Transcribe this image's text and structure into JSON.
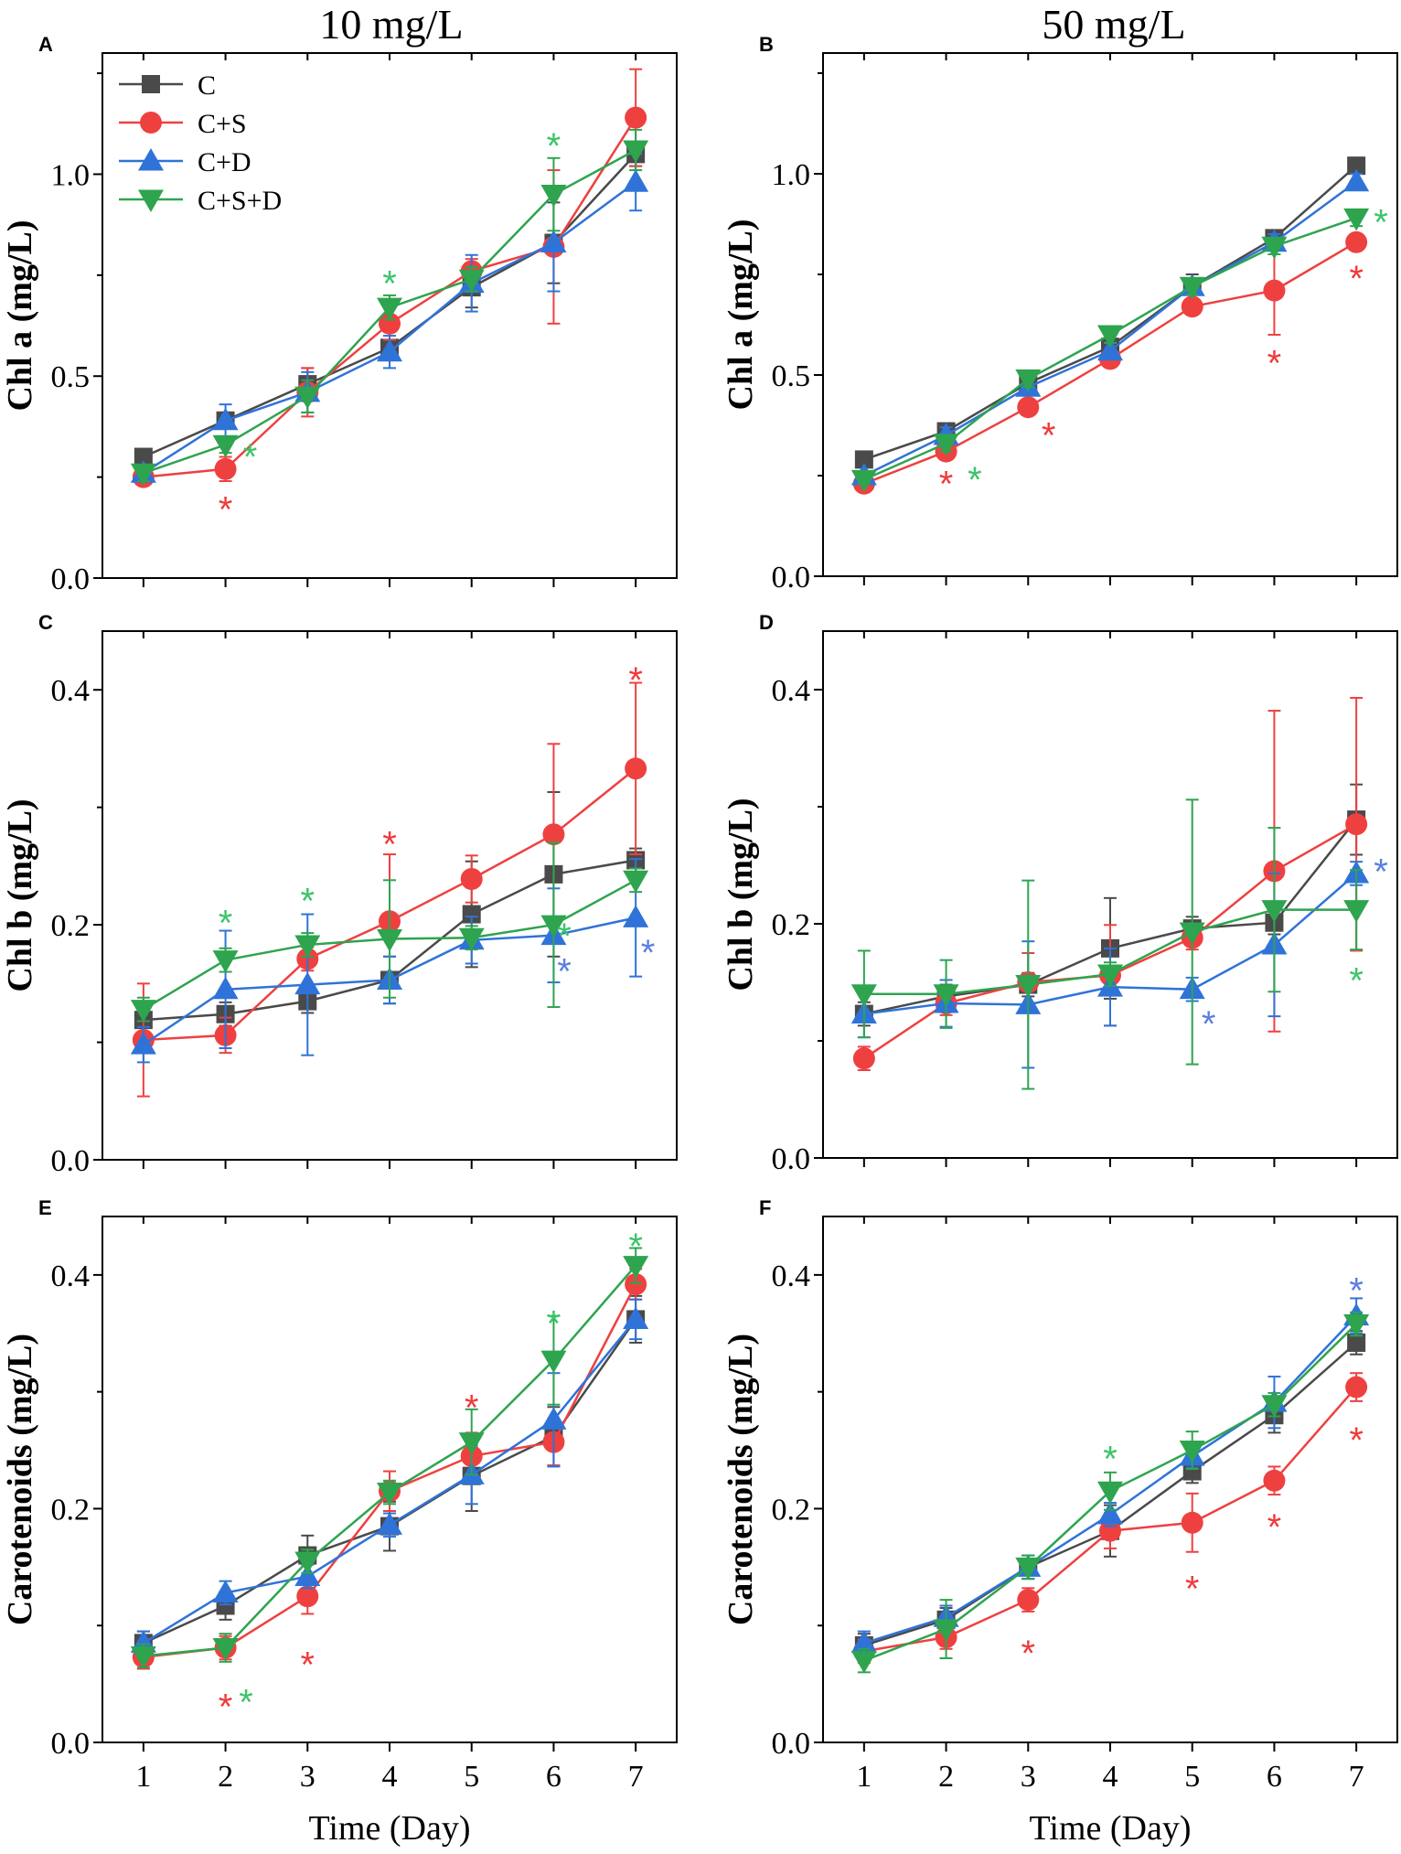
{
  "figure": {
    "column_titles": [
      "10 mg/L",
      "50 mg/L"
    ],
    "xlabel": "Time (Day)",
    "x_ticks": [
      1,
      2,
      3,
      4,
      5,
      6,
      7
    ],
    "legend_position": "top-left of panel A"
  },
  "colors": {
    "C": "#4a4a4a",
    "C+S": "#ef4040",
    "C+D": "#2f73d8",
    "C+S+D": "#2ea44f",
    "star_red": "#ef3a3a",
    "star_green": "#3cc46a",
    "star_blue": "#5a7fe0"
  },
  "legend": [
    {
      "name": "C",
      "marker": "square"
    },
    {
      "name": "C+S",
      "marker": "circle"
    },
    {
      "name": "C+D",
      "marker": "triangle-up"
    },
    {
      "name": "C+S+D",
      "marker": "triangle-down"
    }
  ],
  "chart_data": [
    {
      "type": "line",
      "panel": "A",
      "title": "10 mg/L",
      "ylabel": "Chl a (mg/L)",
      "xlabel": "",
      "x": [
        1,
        2,
        3,
        4,
        5,
        6,
        7
      ],
      "ylim": [
        0,
        1.3
      ],
      "yticks": [
        0,
        0.5,
        1.0
      ],
      "ytick_labels": [
        "0.0",
        "0.5",
        "1.0"
      ],
      "series": [
        {
          "name": "C",
          "values": [
            0.3,
            0.39,
            0.48,
            0.57,
            0.72,
            0.83,
            1.05
          ],
          "errors": [
            0.01,
            0.02,
            0.04,
            0.02,
            0.05,
            0.1,
            0.03
          ]
        },
        {
          "name": "C+S",
          "values": [
            0.25,
            0.27,
            0.46,
            0.63,
            0.76,
            0.82,
            1.14
          ],
          "errors": [
            0.01,
            0.03,
            0.06,
            0.04,
            0.03,
            0.19,
            0.12
          ]
        },
        {
          "name": "C+D",
          "values": [
            0.26,
            0.39,
            0.46,
            0.56,
            0.73,
            0.83,
            0.98
          ],
          "errors": [
            0.02,
            0.04,
            0.05,
            0.04,
            0.07,
            0.12,
            0.07
          ]
        },
        {
          "name": "C+S+D",
          "values": [
            0.26,
            0.33,
            0.45,
            0.67,
            0.74,
            0.95,
            1.06
          ],
          "errors": [
            0.02,
            0.02,
            0.04,
            0.03,
            0.03,
            0.09,
            0.05
          ]
        }
      ],
      "significance": [
        {
          "x": 2,
          "y": 0.18,
          "color": "star_red"
        },
        {
          "x": 2.3,
          "y": 0.31,
          "color": "star_green"
        },
        {
          "x": 4,
          "y": 0.74,
          "color": "star_green"
        },
        {
          "x": 6,
          "y": 1.08,
          "color": "star_green"
        }
      ]
    },
    {
      "type": "line",
      "panel": "B",
      "title": "50 mg/L",
      "ylabel": "Chl a (mg/L)",
      "xlabel": "",
      "x": [
        1,
        2,
        3,
        4,
        5,
        6,
        7
      ],
      "ylim": [
        0,
        1.3
      ],
      "yticks": [
        0,
        0.5,
        1.0
      ],
      "ytick_labels": [
        "0.0",
        "0.5",
        "1.0"
      ],
      "series": [
        {
          "name": "C",
          "values": [
            0.29,
            0.36,
            0.48,
            0.57,
            0.72,
            0.84,
            1.02
          ],
          "errors": [
            0.01,
            0.02,
            0.02,
            0.03,
            0.03,
            0.02,
            0.02
          ]
        },
        {
          "name": "C+S",
          "values": [
            0.23,
            0.31,
            0.42,
            0.54,
            0.67,
            0.71,
            0.83
          ],
          "errors": [
            0.01,
            0.02,
            0.02,
            0.02,
            0.02,
            0.11,
            0.02
          ]
        },
        {
          "name": "C+D",
          "values": [
            0.25,
            0.35,
            0.47,
            0.56,
            0.72,
            0.83,
            0.98
          ],
          "errors": [
            0.01,
            0.02,
            0.02,
            0.02,
            0.02,
            0.02,
            0.02
          ]
        },
        {
          "name": "C+S+D",
          "values": [
            0.24,
            0.33,
            0.49,
            0.6,
            0.72,
            0.82,
            0.89
          ],
          "errors": [
            0.01,
            0.02,
            0.02,
            0.02,
            0.02,
            0.02,
            0.02
          ]
        }
      ],
      "significance": [
        {
          "x": 2,
          "y": 0.24,
          "color": "star_red"
        },
        {
          "x": 2.35,
          "y": 0.25,
          "color": "star_green"
        },
        {
          "x": 3.25,
          "y": 0.36,
          "color": "star_red"
        },
        {
          "x": 6,
          "y": 0.54,
          "color": "star_red"
        },
        {
          "x": 7,
          "y": 0.75,
          "color": "star_red"
        },
        {
          "x": 7.3,
          "y": 0.89,
          "color": "star_green"
        }
      ]
    },
    {
      "type": "line",
      "panel": "C",
      "ylabel": "Chl b (mg/L)",
      "xlabel": "",
      "x": [
        1,
        2,
        3,
        4,
        5,
        6,
        7
      ],
      "ylim": [
        0,
        0.45
      ],
      "yticks": [
        0,
        0.2,
        0.4
      ],
      "ytick_labels": [
        "0.0",
        "0.2",
        "0.4"
      ],
      "series": [
        {
          "name": "C",
          "values": [
            0.119,
            0.124,
            0.135,
            0.153,
            0.209,
            0.243,
            0.255
          ],
          "errors": [
            0.01,
            0.01,
            0.01,
            0.02,
            0.045,
            0.07,
            0.01
          ]
        },
        {
          "name": "C+S",
          "values": [
            0.102,
            0.106,
            0.171,
            0.203,
            0.239,
            0.277,
            0.333
          ],
          "errors": [
            0.048,
            0.015,
            0.01,
            0.057,
            0.02,
            0.077,
            0.073
          ]
        },
        {
          "name": "C+D",
          "values": [
            0.098,
            0.145,
            0.149,
            0.153,
            0.187,
            0.191,
            0.206
          ],
          "errors": [
            0.015,
            0.05,
            0.06,
            0.02,
            0.02,
            0.04,
            0.05
          ]
        },
        {
          "name": "C+S+D",
          "values": [
            0.128,
            0.17,
            0.183,
            0.188,
            0.189,
            0.2,
            0.238
          ],
          "errors": [
            0.01,
            0.01,
            0.01,
            0.05,
            0.01,
            0.07,
            0.01
          ]
        }
      ],
      "significance": [
        {
          "x": 2,
          "y": 0.205,
          "color": "star_green"
        },
        {
          "x": 3,
          "y": 0.224,
          "color": "star_green"
        },
        {
          "x": 4,
          "y": 0.272,
          "color": "star_red"
        },
        {
          "x": 6.13,
          "y": 0.194,
          "color": "star_green"
        },
        {
          "x": 6.13,
          "y": 0.164,
          "color": "star_blue"
        },
        {
          "x": 7,
          "y": 0.412,
          "color": "star_red"
        },
        {
          "x": 7.15,
          "y": 0.18,
          "color": "star_blue"
        }
      ]
    },
    {
      "type": "line",
      "panel": "D",
      "ylabel": "Chl b (mg/L)",
      "xlabel": "",
      "x": [
        1,
        2,
        3,
        4,
        5,
        6,
        7
      ],
      "ylim": [
        0,
        0.45
      ],
      "yticks": [
        0,
        0.2,
        0.4
      ],
      "ytick_labels": [
        "0.0",
        "0.2",
        "0.4"
      ],
      "series": [
        {
          "name": "C",
          "values": [
            0.123,
            0.138,
            0.148,
            0.179,
            0.196,
            0.201,
            0.289
          ],
          "errors": [
            0.01,
            0.01,
            0.01,
            0.043,
            0.01,
            0.01,
            0.03
          ]
        },
        {
          "name": "C+S",
          "values": [
            0.085,
            0.132,
            0.15,
            0.156,
            0.188,
            0.245,
            0.285
          ],
          "errors": [
            0.01,
            0.01,
            0.025,
            0.043,
            0.01,
            0.137,
            0.108
          ]
        },
        {
          "name": "C+D",
          "values": [
            0.123,
            0.132,
            0.131,
            0.146,
            0.144,
            0.182,
            0.243
          ],
          "errors": [
            0.02,
            0.02,
            0.054,
            0.033,
            0.01,
            0.061,
            0.01
          ]
        },
        {
          "name": "C+S+D",
          "values": [
            0.14,
            0.14,
            0.148,
            0.157,
            0.193,
            0.212,
            0.212
          ],
          "errors": [
            0.037,
            0.029,
            0.089,
            0.01,
            0.113,
            0.07,
            0.034
          ]
        }
      ],
      "significance": [
        {
          "x": 5.2,
          "y": 0.118,
          "color": "star_blue"
        },
        {
          "x": 7.3,
          "y": 0.248,
          "color": "star_blue"
        },
        {
          "x": 7,
          "y": 0.155,
          "color": "star_green"
        }
      ]
    },
    {
      "type": "line",
      "panel": "E",
      "ylabel": "Carotenoids (mg/L)",
      "xlabel": "Time (Day)",
      "x": [
        1,
        2,
        3,
        4,
        5,
        6,
        7
      ],
      "ylim": [
        0,
        0.45
      ],
      "yticks": [
        0,
        0.2,
        0.4
      ],
      "ytick_labels": [
        "0.0",
        "0.2",
        "0.4"
      ],
      "series": [
        {
          "name": "C",
          "values": [
            0.085,
            0.117,
            0.16,
            0.185,
            0.228,
            0.262,
            0.362
          ],
          "errors": [
            0.01,
            0.012,
            0.017,
            0.021,
            0.03,
            0.025,
            0.02
          ]
        },
        {
          "name": "C+S",
          "values": [
            0.073,
            0.081,
            0.125,
            0.215,
            0.245,
            0.257,
            0.392
          ],
          "errors": [
            0.01,
            0.01,
            0.015,
            0.017,
            0.02,
            0.02,
            0.013
          ]
        },
        {
          "name": "C+D",
          "values": [
            0.085,
            0.128,
            0.142,
            0.186,
            0.229,
            0.276,
            0.362
          ],
          "errors": [
            0.01,
            0.01,
            0.01,
            0.01,
            0.025,
            0.04,
            0.017
          ]
        },
        {
          "name": "C+S+D",
          "values": [
            0.074,
            0.081,
            0.155,
            0.214,
            0.257,
            0.327,
            0.408
          ],
          "errors": [
            0.01,
            0.012,
            0.01,
            0.01,
            0.028,
            0.038,
            0.015
          ]
        }
      ],
      "significance": [
        {
          "x": 2,
          "y": 0.034,
          "color": "star_red"
        },
        {
          "x": 2.25,
          "y": 0.038,
          "color": "star_green"
        },
        {
          "x": 3,
          "y": 0.07,
          "color": "star_red"
        },
        {
          "x": 5,
          "y": 0.29,
          "color": "star_red"
        },
        {
          "x": 6,
          "y": 0.362,
          "color": "star_green"
        },
        {
          "x": 7,
          "y": 0.428,
          "color": "star_green"
        }
      ]
    },
    {
      "type": "line",
      "panel": "F",
      "ylabel": "Carotenoids (mg/L)",
      "xlabel": "Time (Day)",
      "x": [
        1,
        2,
        3,
        4,
        5,
        6,
        7
      ],
      "ylim": [
        0,
        0.45
      ],
      "yticks": [
        0,
        0.2,
        0.4
      ],
      "ytick_labels": [
        "0.0",
        "0.2",
        "0.4"
      ],
      "series": [
        {
          "name": "C",
          "values": [
            0.083,
            0.105,
            0.15,
            0.181,
            0.232,
            0.28,
            0.342
          ],
          "errors": [
            0.01,
            0.01,
            0.01,
            0.022,
            0.01,
            0.015,
            0.01
          ]
        },
        {
          "name": "C+S",
          "values": [
            0.078,
            0.09,
            0.122,
            0.181,
            0.188,
            0.224,
            0.304
          ],
          "errors": [
            0.01,
            0.01,
            0.01,
            0.015,
            0.025,
            0.012,
            0.012
          ]
        },
        {
          "name": "C+D",
          "values": [
            0.085,
            0.107,
            0.15,
            0.195,
            0.245,
            0.291,
            0.365
          ],
          "errors": [
            0.01,
            0.01,
            0.01,
            0.01,
            0.01,
            0.022,
            0.015
          ]
        },
        {
          "name": "C+S+D",
          "values": [
            0.07,
            0.097,
            0.15,
            0.215,
            0.25,
            0.289,
            0.358
          ],
          "errors": [
            0.01,
            0.025,
            0.01,
            0.016,
            0.016,
            0.01,
            0.01
          ]
        }
      ],
      "significance": [
        {
          "x": 3,
          "y": 0.08,
          "color": "star_red"
        },
        {
          "x": 4,
          "y": 0.246,
          "color": "star_green"
        },
        {
          "x": 5,
          "y": 0.135,
          "color": "star_red"
        },
        {
          "x": 6,
          "y": 0.188,
          "color": "star_red"
        },
        {
          "x": 7,
          "y": 0.262,
          "color": "star_red"
        },
        {
          "x": 7,
          "y": 0.39,
          "color": "star_blue"
        }
      ]
    }
  ]
}
